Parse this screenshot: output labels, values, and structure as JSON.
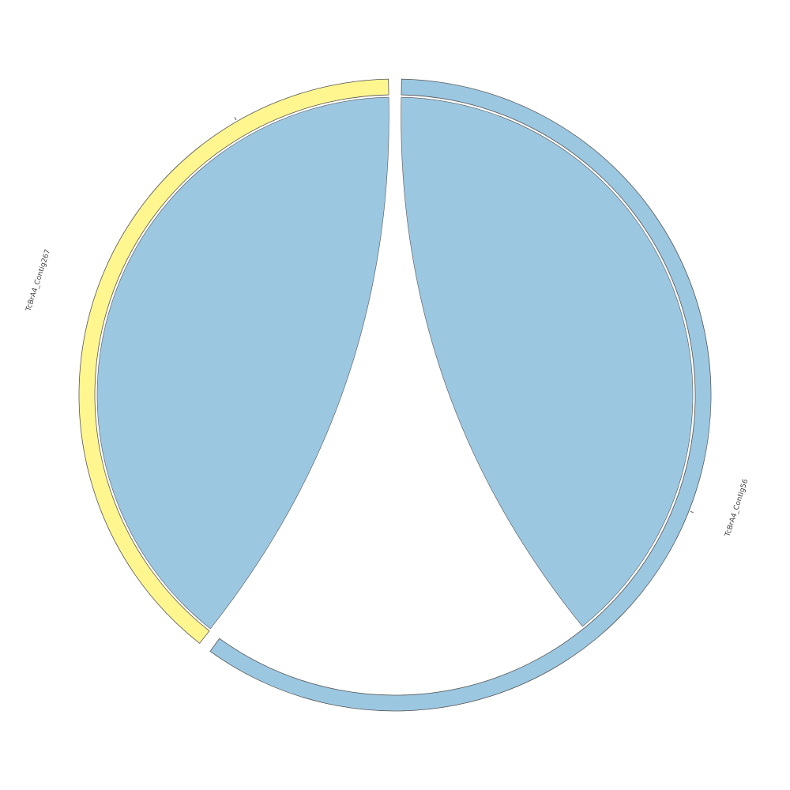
{
  "segments": [
    {
      "name": "TcBrA4_Contig56",
      "color": "#9BC7E1"
    },
    {
      "name": "TcBrA4_Contig267",
      "color": "#FFF68F"
    }
  ],
  "links": [
    {
      "from": "TcBrA4_Contig267",
      "to": "TcBrA4_Contig267",
      "color": "#9BC7E1"
    },
    {
      "from": "TcBrA4_Contig56",
      "to": "TcBrA4_Contig56",
      "color": "#9BC7E1"
    }
  ],
  "stroke_color": "#555555"
}
